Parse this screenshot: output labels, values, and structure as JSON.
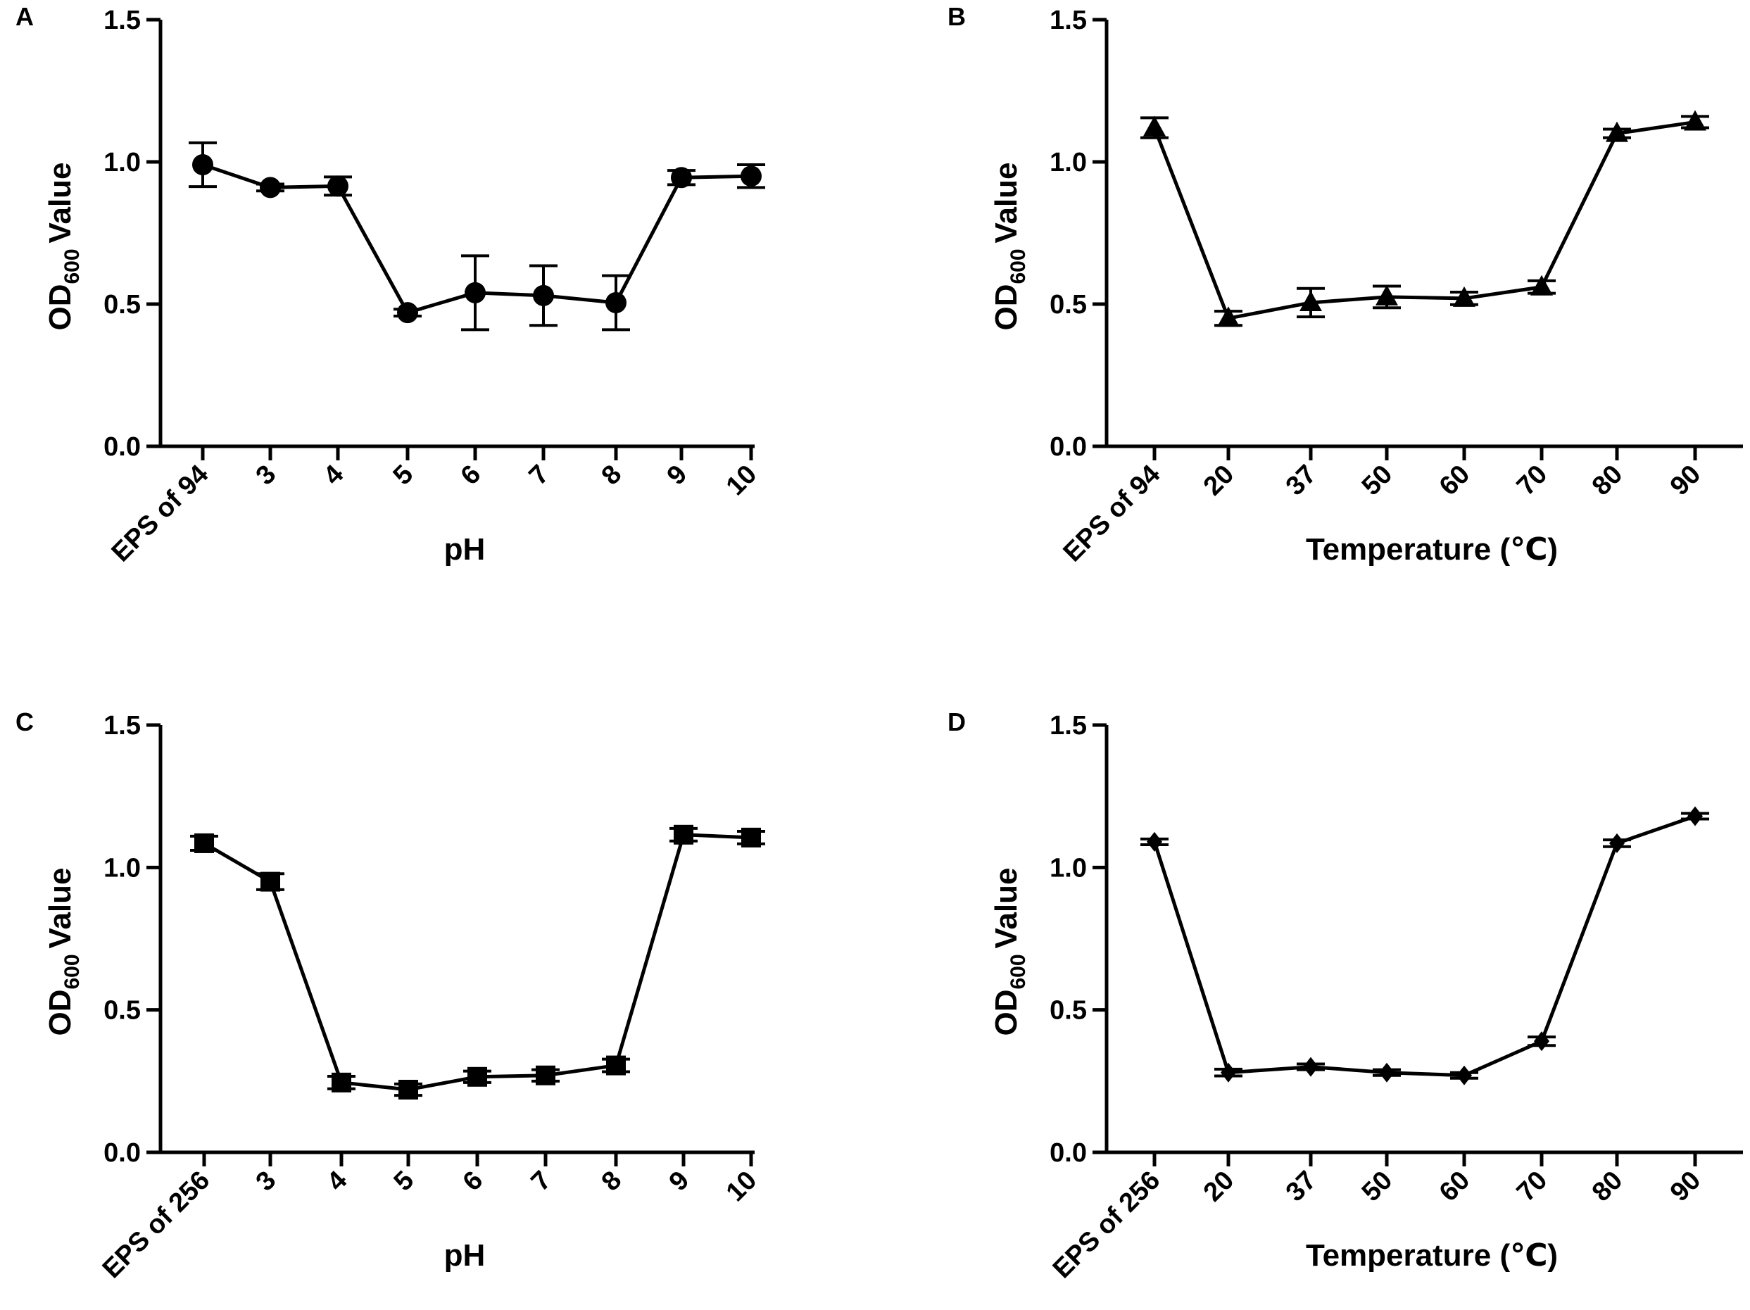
{
  "chart_data": [
    {
      "panel": "A",
      "type": "line",
      "marker": "circle",
      "ylabel": {
        "main": "OD",
        "sub": "600",
        "rest": "Value"
      },
      "xlabel": "pH",
      "ylim": [
        0,
        1.5
      ],
      "yticks": [
        "0.0",
        "0.5",
        "1.0",
        "1.5"
      ],
      "categories": [
        "EPS of 94",
        "3",
        "4",
        "5",
        "6",
        "7",
        "8",
        "9",
        "10"
      ],
      "values": [
        0.99,
        0.91,
        0.915,
        0.47,
        0.54,
        0.53,
        0.505,
        0.945,
        0.95
      ],
      "errors": [
        0.077,
        0.012,
        0.032,
        0.012,
        0.13,
        0.105,
        0.095,
        0.025,
        0.04
      ]
    },
    {
      "panel": "B",
      "type": "line",
      "marker": "triangle",
      "ylabel": {
        "main": "OD",
        "sub": "600",
        "rest": "Value"
      },
      "xlabel": "Temperature (℃)",
      "ylim": [
        0,
        1.5
      ],
      "yticks": [
        "0.0",
        "0.5",
        "1.0",
        "1.5"
      ],
      "categories": [
        "EPS of 94",
        "20",
        "37",
        "50",
        "60",
        "70",
        "80",
        "90"
      ],
      "values": [
        1.12,
        0.45,
        0.505,
        0.525,
        0.52,
        0.56,
        1.1,
        1.14
      ],
      "errors": [
        0.035,
        0.025,
        0.05,
        0.038,
        0.022,
        0.022,
        0.015,
        0.02
      ]
    },
    {
      "panel": "C",
      "type": "line",
      "marker": "square",
      "ylabel": {
        "main": "OD",
        "sub": "600",
        "rest": "Value"
      },
      "xlabel": "pH",
      "ylim": [
        0,
        1.5
      ],
      "yticks": [
        "0.0",
        "0.5",
        "1.0",
        "1.5"
      ],
      "categories": [
        "EPS of 256",
        "3",
        "4",
        "5",
        "6",
        "7",
        "8",
        "9",
        "10"
      ],
      "values": [
        1.085,
        0.95,
        0.245,
        0.22,
        0.265,
        0.27,
        0.305,
        1.115,
        1.105
      ],
      "errors": [
        0.025,
        0.028,
        0.022,
        0.02,
        0.02,
        0.02,
        0.022,
        0.022,
        0.022
      ]
    },
    {
      "panel": "D",
      "type": "line",
      "marker": "diamond",
      "ylabel": {
        "main": "OD",
        "sub": "600",
        "rest": "Value"
      },
      "xlabel": "Temperature (℃)",
      "ylim": [
        0,
        1.5
      ],
      "yticks": [
        "0.0",
        "0.5",
        "1.0",
        "1.5"
      ],
      "categories": [
        "EPS of 256",
        "20",
        "37",
        "50",
        "60",
        "70",
        "80",
        "90"
      ],
      "values": [
        1.09,
        0.28,
        0.3,
        0.28,
        0.27,
        0.39,
        1.085,
        1.18
      ],
      "errors": [
        0.01,
        0.012,
        0.01,
        0.01,
        0.01,
        0.015,
        0.012,
        0.01
      ]
    }
  ]
}
